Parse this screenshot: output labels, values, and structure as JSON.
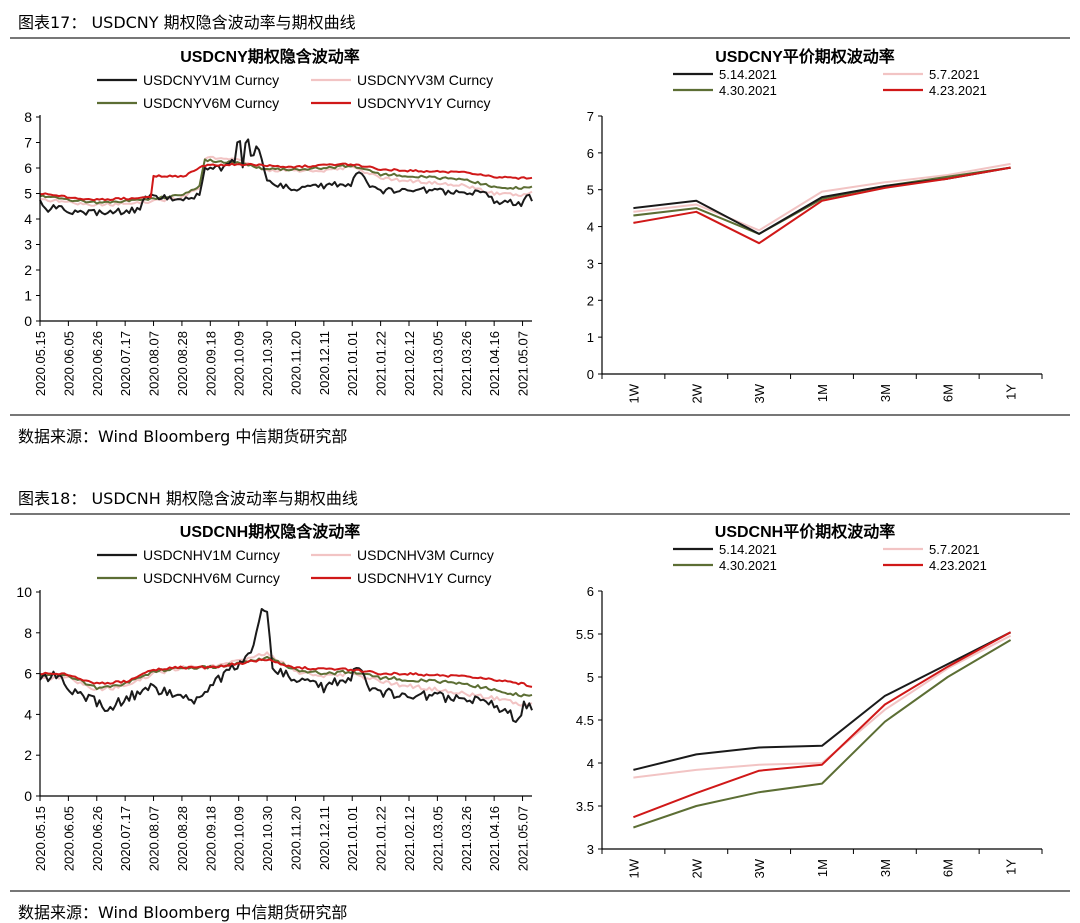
{
  "figures": [
    {
      "caption": "图表17： USDCNY 期权隐含波动率与期权曲线",
      "source": "数据来源：Wind  Bloomberg  中信期货研究部"
    },
    {
      "caption": "图表18： USDCNH 期权隐含波动率与期权曲线",
      "source": "数据来源：Wind  Bloomberg  中信期货研究部"
    }
  ],
  "chart_data": [
    {
      "id": "cny-ts",
      "type": "line",
      "title": "USDCNY期权隐含波动率",
      "ylim": [
        0,
        8
      ],
      "yticks": [
        0,
        1,
        2,
        3,
        4,
        5,
        6,
        7,
        8
      ],
      "legend_position": "top",
      "x": [
        "2020.05.15",
        "2020.06.05",
        "2020.06.26",
        "2020.07.17",
        "2020.08.07",
        "2020.08.28",
        "2020.09.18",
        "2020.10.09",
        "2020.10.30",
        "2020.11.20",
        "2020.12.11",
        "2021.01.01",
        "2021.01.22",
        "2021.02.12",
        "2021.03.05",
        "2021.03.26",
        "2021.04.16",
        "2021.05.07"
      ],
      "x_end": "2021.05.14",
      "series": [
        {
          "name": "USDCNYV1M Curncy",
          "color": "#1a1a1a",
          "noise": 0.12,
          "points": [
            [
              "2020.05.15",
              4.7
            ],
            [
              "2020.05.18",
              4.3
            ],
            [
              "2020.05.25",
              4.5
            ],
            [
              "2020.06.05",
              4.3
            ],
            [
              "2020.06.26",
              4.25
            ],
            [
              "2020.07.17",
              4.3
            ],
            [
              "2020.07.28",
              4.4
            ],
            [
              "2020.07.31",
              4.8
            ],
            [
              "2020.08.10",
              4.9
            ],
            [
              "2020.08.28",
              4.75
            ],
            [
              "2020.09.10",
              4.9
            ],
            [
              "2020.09.14",
              6.0
            ],
            [
              "2020.09.28",
              6.0
            ],
            [
              "2020.10.06",
              6.3
            ],
            [
              "2020.10.09",
              7.5
            ],
            [
              "2020.10.12",
              6.1
            ],
            [
              "2020.10.15",
              7.4
            ],
            [
              "2020.10.19",
              6.2
            ],
            [
              "2020.10.23",
              7.0
            ],
            [
              "2020.10.27",
              6.0
            ],
            [
              "2020.10.30",
              5.4
            ],
            [
              "2020.11.20",
              5.2
            ],
            [
              "2020.12.11",
              5.3
            ],
            [
              "2021.01.01",
              5.4
            ],
            [
              "2021.01.05",
              6.0
            ],
            [
              "2021.01.12",
              5.4
            ],
            [
              "2021.01.22",
              5.1
            ],
            [
              "2021.02.12",
              5.2
            ],
            [
              "2021.03.05",
              5.1
            ],
            [
              "2021.03.26",
              5.0
            ],
            [
              "2021.04.10",
              5.0
            ],
            [
              "2021.04.16",
              4.7
            ],
            [
              "2021.05.07",
              4.6
            ],
            [
              "2021.05.10",
              5.0
            ],
            [
              "2021.05.14",
              4.7
            ]
          ]
        },
        {
          "name": "USDCNYV3M Curncy",
          "color": "#f2c4c4",
          "noise": 0.06,
          "points": [
            [
              "2020.05.15",
              4.8
            ],
            [
              "2020.06.05",
              4.65
            ],
            [
              "2020.06.26",
              4.55
            ],
            [
              "2020.07.17",
              4.6
            ],
            [
              "2020.08.07",
              4.7
            ],
            [
              "2020.08.28",
              4.85
            ],
            [
              "2020.09.10",
              5.2
            ],
            [
              "2020.09.14",
              6.4
            ],
            [
              "2020.10.09",
              6.3
            ],
            [
              "2020.10.30",
              5.9
            ],
            [
              "2020.11.20",
              5.9
            ],
            [
              "2020.12.11",
              5.9
            ],
            [
              "2021.01.01",
              6.05
            ],
            [
              "2021.01.22",
              5.6
            ],
            [
              "2021.02.12",
              5.5
            ],
            [
              "2021.03.05",
              5.4
            ],
            [
              "2021.03.26",
              5.3
            ],
            [
              "2021.04.16",
              5.0
            ],
            [
              "2021.05.07",
              4.95
            ],
            [
              "2021.05.14",
              5.1
            ]
          ]
        },
        {
          "name": "USDCNYV6M Curncy",
          "color": "#5c6e34",
          "noise": 0.05,
          "points": [
            [
              "2020.05.15",
              4.9
            ],
            [
              "2020.06.05",
              4.75
            ],
            [
              "2020.06.26",
              4.65
            ],
            [
              "2020.07.17",
              4.7
            ],
            [
              "2020.08.07",
              4.8
            ],
            [
              "2020.08.28",
              4.95
            ],
            [
              "2020.09.10",
              5.3
            ],
            [
              "2020.09.14",
              6.3
            ],
            [
              "2020.10.09",
              6.2
            ],
            [
              "2020.10.30",
              5.95
            ],
            [
              "2020.11.20",
              5.95
            ],
            [
              "2020.12.11",
              6.0
            ],
            [
              "2021.01.01",
              6.1
            ],
            [
              "2021.01.22",
              5.75
            ],
            [
              "2021.02.12",
              5.7
            ],
            [
              "2021.03.05",
              5.6
            ],
            [
              "2021.03.26",
              5.55
            ],
            [
              "2021.04.16",
              5.25
            ],
            [
              "2021.05.07",
              5.2
            ],
            [
              "2021.05.14",
              5.3
            ]
          ]
        },
        {
          "name": "USDCNYV1Y Curncy",
          "color": "#d01818",
          "noise": 0.04,
          "points": [
            [
              "2020.05.15",
              5.0
            ],
            [
              "2020.06.05",
              4.85
            ],
            [
              "2020.06.26",
              4.75
            ],
            [
              "2020.07.17",
              4.8
            ],
            [
              "2020.08.05",
              4.85
            ],
            [
              "2020.08.07",
              5.7
            ],
            [
              "2020.08.28",
              5.65
            ],
            [
              "2020.09.14",
              6.1
            ],
            [
              "2020.10.09",
              6.15
            ],
            [
              "2020.10.30",
              6.1
            ],
            [
              "2020.11.20",
              6.05
            ],
            [
              "2020.12.11",
              6.1
            ],
            [
              "2021.01.01",
              6.15
            ],
            [
              "2021.01.22",
              5.95
            ],
            [
              "2021.02.12",
              5.9
            ],
            [
              "2021.03.05",
              5.85
            ],
            [
              "2021.03.26",
              5.85
            ],
            [
              "2021.04.16",
              5.65
            ],
            [
              "2021.05.07",
              5.6
            ],
            [
              "2021.05.14",
              5.65
            ]
          ]
        }
      ]
    },
    {
      "id": "cny-curve",
      "type": "line",
      "title": "USDCNY平价期权波动率",
      "ylim": [
        0,
        7
      ],
      "yticks": [
        0,
        1,
        2,
        3,
        4,
        5,
        6,
        7
      ],
      "legend_position": "top",
      "categories": [
        "1W",
        "2W",
        "3W",
        "1M",
        "3M",
        "6M",
        "1Y"
      ],
      "series": [
        {
          "name": "5.14.2021",
          "color": "#1a1a1a",
          "values": [
            4.5,
            4.7,
            3.8,
            4.8,
            5.1,
            5.3,
            5.6
          ]
        },
        {
          "name": "5.7.2021",
          "color": "#f2c4c4",
          "values": [
            4.4,
            4.6,
            3.9,
            4.95,
            5.2,
            5.4,
            5.7
          ]
        },
        {
          "name": "4.30.2021",
          "color": "#5c6e34",
          "values": [
            4.3,
            4.5,
            3.8,
            4.75,
            5.1,
            5.35,
            5.6
          ]
        },
        {
          "name": "4.23.2021",
          "color": "#d01818",
          "values": [
            4.1,
            4.4,
            3.55,
            4.7,
            5.05,
            5.3,
            5.6
          ]
        }
      ]
    },
    {
      "id": "cnh-ts",
      "type": "line",
      "title": "USDCNH期权隐含波动率",
      "ylim": [
        0,
        10
      ],
      "yticks": [
        0,
        2,
        4,
        6,
        8,
        10
      ],
      "legend_position": "top",
      "x": [
        "2020.05.15",
        "2020.06.05",
        "2020.06.26",
        "2020.07.17",
        "2020.08.07",
        "2020.08.28",
        "2020.09.18",
        "2020.10.09",
        "2020.10.30",
        "2020.11.20",
        "2020.12.11",
        "2021.01.01",
        "2021.01.22",
        "2021.02.12",
        "2021.03.05",
        "2021.03.26",
        "2021.04.16",
        "2021.05.07"
      ],
      "x_end": "2021.05.14",
      "series": [
        {
          "name": "USDCNHV1M Curncy",
          "color": "#1a1a1a",
          "noise": 0.25,
          "points": [
            [
              "2020.05.15",
              5.6
            ],
            [
              "2020.05.25",
              6.0
            ],
            [
              "2020.06.05",
              5.3
            ],
            [
              "2020.06.26",
              4.6
            ],
            [
              "2020.07.05",
              4.2
            ],
            [
              "2020.07.17",
              4.8
            ],
            [
              "2020.08.07",
              5.3
            ],
            [
              "2020.08.28",
              4.9
            ],
            [
              "2020.09.08",
              4.6
            ],
            [
              "2020.09.18",
              5.4
            ],
            [
              "2020.10.09",
              6.5
            ],
            [
              "2020.10.20",
              7.2
            ],
            [
              "2020.10.25",
              9.0
            ],
            [
              "2020.10.30",
              8.8
            ],
            [
              "2020.11.03",
              6.2
            ],
            [
              "2020.11.20",
              5.8
            ],
            [
              "2020.12.11",
              5.3
            ],
            [
              "2021.01.01",
              5.9
            ],
            [
              "2021.01.05",
              6.6
            ],
            [
              "2021.01.12",
              5.4
            ],
            [
              "2021.01.22",
              5.1
            ],
            [
              "2021.02.12",
              5.0
            ],
            [
              "2021.03.05",
              4.9
            ],
            [
              "2021.03.26",
              4.7
            ],
            [
              "2021.04.16",
              4.5
            ],
            [
              "2021.05.04",
              3.7
            ],
            [
              "2021.05.08",
              4.6
            ],
            [
              "2021.05.14",
              4.2
            ]
          ]
        },
        {
          "name": "USDCNHV3M Curncy",
          "color": "#f2c4c4",
          "noise": 0.1,
          "points": [
            [
              "2020.05.15",
              5.8
            ],
            [
              "2020.06.05",
              5.8
            ],
            [
              "2020.06.26",
              5.2
            ],
            [
              "2020.07.17",
              5.4
            ],
            [
              "2020.08.07",
              6.0
            ],
            [
              "2020.08.28",
              6.3
            ],
            [
              "2020.09.18",
              6.3
            ],
            [
              "2020.10.09",
              6.6
            ],
            [
              "2020.10.30",
              7.0
            ],
            [
              "2020.11.20",
              6.1
            ],
            [
              "2020.12.11",
              5.9
            ],
            [
              "2021.01.01",
              6.0
            ],
            [
              "2021.01.22",
              5.6
            ],
            [
              "2021.02.12",
              5.4
            ],
            [
              "2021.03.05",
              5.2
            ],
            [
              "2021.03.26",
              5.0
            ],
            [
              "2021.04.16",
              4.8
            ],
            [
              "2021.05.07",
              4.5
            ],
            [
              "2021.05.14",
              4.6
            ]
          ]
        },
        {
          "name": "USDCNHV6M Curncy",
          "color": "#5c6e34",
          "noise": 0.08,
          "points": [
            [
              "2020.05.15",
              5.9
            ],
            [
              "2020.06.05",
              5.9
            ],
            [
              "2020.06.26",
              5.3
            ],
            [
              "2020.07.17",
              5.5
            ],
            [
              "2020.08.07",
              6.1
            ],
            [
              "2020.08.28",
              6.3
            ],
            [
              "2020.09.18",
              6.3
            ],
            [
              "2020.10.09",
              6.5
            ],
            [
              "2020.10.30",
              6.8
            ],
            [
              "2020.11.20",
              6.2
            ],
            [
              "2020.12.11",
              6.0
            ],
            [
              "2021.01.01",
              6.1
            ],
            [
              "2021.01.22",
              5.8
            ],
            [
              "2021.02.12",
              5.7
            ],
            [
              "2021.03.05",
              5.6
            ],
            [
              "2021.03.26",
              5.5
            ],
            [
              "2021.04.16",
              5.2
            ],
            [
              "2021.05.07",
              4.9
            ],
            [
              "2021.05.14",
              5.0
            ]
          ]
        },
        {
          "name": "USDCNHV1Y Curncy",
          "color": "#d01818",
          "noise": 0.06,
          "points": [
            [
              "2020.05.15",
              6.0
            ],
            [
              "2020.06.05",
              5.95
            ],
            [
              "2020.06.26",
              5.5
            ],
            [
              "2020.07.17",
              5.6
            ],
            [
              "2020.08.07",
              6.2
            ],
            [
              "2020.08.28",
              6.3
            ],
            [
              "2020.09.18",
              6.3
            ],
            [
              "2020.10.09",
              6.5
            ],
            [
              "2020.10.30",
              6.7
            ],
            [
              "2020.11.20",
              6.3
            ],
            [
              "2020.12.11",
              6.2
            ],
            [
              "2021.01.01",
              6.2
            ],
            [
              "2021.01.22",
              6.0
            ],
            [
              "2021.02.12",
              6.0
            ],
            [
              "2021.03.05",
              5.9
            ],
            [
              "2021.03.26",
              5.9
            ],
            [
              "2021.04.16",
              5.7
            ],
            [
              "2021.05.07",
              5.5
            ],
            [
              "2021.05.14",
              5.4
            ]
          ]
        }
      ]
    },
    {
      "id": "cnh-curve",
      "type": "line",
      "title": "USDCNH平价期权波动率",
      "ylim": [
        3,
        6
      ],
      "yticks": [
        3,
        3.5,
        4,
        4.5,
        5,
        5.5,
        6
      ],
      "legend_position": "top",
      "categories": [
        "1W",
        "2W",
        "3W",
        "1M",
        "3M",
        "6M",
        "1Y"
      ],
      "series": [
        {
          "name": "5.14.2021",
          "color": "#1a1a1a",
          "values": [
            3.92,
            4.1,
            4.18,
            4.2,
            4.78,
            5.15,
            5.52
          ]
        },
        {
          "name": "5.7.2021",
          "color": "#f2c4c4",
          "values": [
            3.83,
            3.92,
            3.98,
            4.0,
            4.62,
            5.1,
            5.48
          ]
        },
        {
          "name": "4.30.2021",
          "color": "#5c6e34",
          "values": [
            3.25,
            3.5,
            3.66,
            3.76,
            4.48,
            5.0,
            5.43
          ]
        },
        {
          "name": "4.23.2021",
          "color": "#d01818",
          "values": [
            3.37,
            3.65,
            3.91,
            3.98,
            4.68,
            5.12,
            5.52
          ]
        }
      ]
    }
  ]
}
